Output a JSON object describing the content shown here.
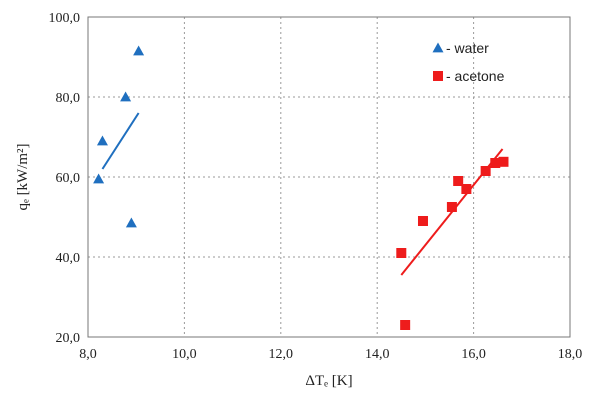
{
  "chart_data": {
    "type": "scatter",
    "title": "",
    "xlabel": "ΔTₑ [K]",
    "ylabel": "qₑ [kW/m²]",
    "xlim": [
      8.0,
      18.0
    ],
    "ylim": [
      20.0,
      100.0
    ],
    "x_ticks": [
      "8,0",
      "10,0",
      "12,0",
      "14,0",
      "16,0",
      "18,0"
    ],
    "y_ticks": [
      "20,0",
      "40,0",
      "60,0",
      "80,0",
      "100,0"
    ],
    "grid": true,
    "legend_position": "top-right",
    "series": [
      {
        "name": "- water",
        "marker": "triangle",
        "color": "#1f6fbf",
        "points": [
          [
            8.22,
            59.5
          ],
          [
            8.3,
            69.0
          ],
          [
            8.78,
            80.0
          ],
          [
            8.9,
            48.5
          ],
          [
            9.05,
            91.5
          ]
        ],
        "trendline": [
          [
            8.3,
            62.0
          ],
          [
            9.05,
            76.0
          ]
        ]
      },
      {
        "name": "- acetone",
        "marker": "square",
        "color": "#ee1c1c",
        "points": [
          [
            14.5,
            41.0
          ],
          [
            14.58,
            23.0
          ],
          [
            14.95,
            49.0
          ],
          [
            15.55,
            52.5
          ],
          [
            15.68,
            59.0
          ],
          [
            15.85,
            57.0
          ],
          [
            16.25,
            61.5
          ],
          [
            16.45,
            63.5
          ],
          [
            16.62,
            63.8
          ]
        ],
        "trendline": [
          [
            14.5,
            35.5
          ],
          [
            16.6,
            67.0
          ]
        ]
      }
    ]
  }
}
